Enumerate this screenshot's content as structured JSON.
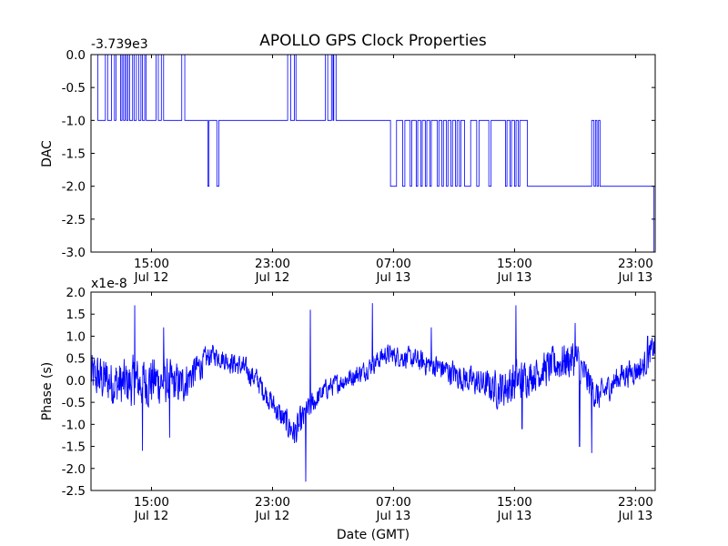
{
  "figure": {
    "title": "APOLLO GPS Clock Properties"
  },
  "chart_data": [
    {
      "type": "line",
      "title": "APOLLO GPS Clock Properties",
      "ylabel": "DAC",
      "offset_text": "-3.739e3",
      "x_unit": "hours since Jul 12 11:00 GMT",
      "xlim": [
        0,
        37.3
      ],
      "ylim": [
        -3.0,
        0.0
      ],
      "yticks": [
        {
          "v": 0.0,
          "label": "0.0"
        },
        {
          "v": -0.5,
          "label": "-0.5"
        },
        {
          "v": -1.0,
          "label": "-1.0"
        },
        {
          "v": -1.5,
          "label": "-1.5"
        },
        {
          "v": -2.0,
          "label": "-2.0"
        },
        {
          "v": -2.5,
          "label": "-2.5"
        },
        {
          "v": -3.0,
          "label": "-3.0"
        }
      ],
      "xticks": [
        {
          "v": 4,
          "time": "15:00",
          "date": "Jul 12"
        },
        {
          "v": 12,
          "time": "23:00",
          "date": "Jul 12"
        },
        {
          "v": 20,
          "time": "07:00",
          "date": "Jul 13"
        },
        {
          "v": 28,
          "time": "15:00",
          "date": "Jul 13"
        },
        {
          "v": 36,
          "time": "23:00",
          "date": "Jul 13"
        }
      ],
      "color": "#0000ff",
      "series": [
        {
          "levels": [
            [
              0.0,
              0
            ],
            [
              0.45,
              -1
            ],
            [
              0.95,
              0
            ],
            [
              1.1,
              -1
            ],
            [
              1.35,
              0
            ],
            [
              1.55,
              -1
            ],
            [
              1.65,
              0
            ],
            [
              1.95,
              -1
            ],
            [
              2.05,
              0
            ],
            [
              2.15,
              -1
            ],
            [
              2.25,
              0
            ],
            [
              2.35,
              -1
            ],
            [
              2.45,
              0
            ],
            [
              2.55,
              -1
            ],
            [
              2.75,
              0
            ],
            [
              2.85,
              -1
            ],
            [
              3.0,
              0
            ],
            [
              3.15,
              -1
            ],
            [
              3.3,
              0
            ],
            [
              3.4,
              -1
            ],
            [
              3.55,
              0
            ],
            [
              3.65,
              -1
            ],
            [
              4.3,
              0
            ],
            [
              4.45,
              -1
            ],
            [
              4.65,
              0
            ],
            [
              4.8,
              -1
            ],
            [
              6.0,
              0
            ],
            [
              6.2,
              -1
            ],
            [
              7.7,
              -1
            ],
            [
              7.72,
              -2
            ],
            [
              7.8,
              -1
            ],
            [
              8.3,
              -1
            ],
            [
              8.32,
              -2
            ],
            [
              8.45,
              -1
            ],
            [
              13.0,
              0
            ],
            [
              13.2,
              -1
            ],
            [
              13.45,
              0
            ],
            [
              13.55,
              -1
            ],
            [
              15.5,
              0
            ],
            [
              15.65,
              -1
            ],
            [
              15.9,
              0
            ],
            [
              16.0,
              -1
            ],
            [
              16.05,
              0
            ],
            [
              16.2,
              -1
            ],
            [
              19.8,
              -2
            ],
            [
              20.2,
              -1
            ],
            [
              20.6,
              -2
            ],
            [
              20.75,
              -1
            ],
            [
              21.1,
              -2
            ],
            [
              21.2,
              -1
            ],
            [
              21.5,
              -2
            ],
            [
              21.6,
              -1
            ],
            [
              21.8,
              -2
            ],
            [
              21.9,
              -1
            ],
            [
              22.1,
              -2
            ],
            [
              22.2,
              -1
            ],
            [
              22.4,
              -2
            ],
            [
              22.5,
              -1
            ],
            [
              22.9,
              -2
            ],
            [
              23.0,
              -1
            ],
            [
              23.2,
              -2
            ],
            [
              23.3,
              -1
            ],
            [
              23.5,
              -2
            ],
            [
              23.6,
              -1
            ],
            [
              23.8,
              -2
            ],
            [
              23.9,
              -1
            ],
            [
              24.1,
              -2
            ],
            [
              24.2,
              -1
            ],
            [
              24.35,
              -2
            ],
            [
              24.45,
              -1
            ],
            [
              24.7,
              -2
            ],
            [
              25.1,
              -1
            ],
            [
              25.5,
              -2
            ],
            [
              25.65,
              -1
            ],
            [
              26.3,
              -2
            ],
            [
              26.45,
              -1
            ],
            [
              27.4,
              -2
            ],
            [
              27.5,
              -1
            ],
            [
              27.7,
              -2
            ],
            [
              27.8,
              -1
            ],
            [
              28.0,
              -2
            ],
            [
              28.1,
              -1
            ],
            [
              28.25,
              -2
            ],
            [
              28.35,
              -1
            ],
            [
              28.85,
              -2
            ],
            [
              33.1,
              -1
            ],
            [
              33.25,
              -2
            ],
            [
              33.35,
              -1
            ],
            [
              33.45,
              -2
            ],
            [
              33.55,
              -1
            ],
            [
              33.65,
              -2
            ],
            [
              37.15,
              -2
            ],
            [
              37.2,
              -3
            ],
            [
              37.3,
              -3
            ]
          ]
        }
      ]
    },
    {
      "type": "line",
      "ylabel": "Phase (s)",
      "xlabel": "Date (GMT)",
      "offset_text": "x1e-8",
      "x_unit": "hours since Jul 12 11:00 GMT",
      "xlim": [
        0,
        37.3
      ],
      "ylim": [
        -2.5,
        2.0
      ],
      "yticks": [
        {
          "v": 2.0,
          "label": "2.0"
        },
        {
          "v": 1.5,
          "label": "1.5"
        },
        {
          "v": 1.0,
          "label": "1.0"
        },
        {
          "v": 0.5,
          "label": "0.5"
        },
        {
          "v": 0.0,
          "label": "0.0"
        },
        {
          "v": -0.5,
          "label": "-0.5"
        },
        {
          "v": -1.0,
          "label": "-1.0"
        },
        {
          "v": -1.5,
          "label": "-1.5"
        },
        {
          "v": -2.0,
          "label": "-2.0"
        },
        {
          "v": -2.5,
          "label": "-2.5"
        }
      ],
      "xticks": [
        {
          "v": 4,
          "time": "15:00",
          "date": "Jul 12"
        },
        {
          "v": 12,
          "time": "23:00",
          "date": "Jul 12"
        },
        {
          "v": 20,
          "time": "07:00",
          "date": "Jul 13"
        },
        {
          "v": 28,
          "time": "15:00",
          "date": "Jul 13"
        },
        {
          "v": 36,
          "time": "23:00",
          "date": "Jul 13"
        }
      ],
      "color": "#0000ff",
      "series": [
        {
          "baseline": [
            [
              0,
              0.1
            ],
            [
              2,
              -0.1
            ],
            [
              4,
              0.0
            ],
            [
              6,
              -0.1
            ],
            [
              8,
              0.6
            ],
            [
              10,
              0.3
            ],
            [
              11,
              0.0
            ],
            [
              12.5,
              -0.8
            ],
            [
              13.5,
              -1.2
            ],
            [
              14.5,
              -0.6
            ],
            [
              15.5,
              -0.2
            ],
            [
              18,
              0.2
            ],
            [
              19.5,
              0.6
            ],
            [
              21,
              0.5
            ],
            [
              23,
              0.3
            ],
            [
              25,
              0.0
            ],
            [
              27,
              -0.2
            ],
            [
              29,
              0.1
            ],
            [
              31,
              0.4
            ],
            [
              32,
              0.5
            ],
            [
              33.5,
              -0.4
            ],
            [
              35,
              0.1
            ],
            [
              36.5,
              0.3
            ],
            [
              37.3,
              0.8
            ]
          ],
          "noise_amp": [
            [
              0,
              0.7
            ],
            [
              4,
              0.8
            ],
            [
              7,
              0.5
            ],
            [
              8,
              0.3
            ],
            [
              10,
              0.35
            ],
            [
              12,
              0.35
            ],
            [
              13.8,
              0.5
            ],
            [
              15,
              0.3
            ],
            [
              20,
              0.3
            ],
            [
              24,
              0.4
            ],
            [
              26,
              0.45
            ],
            [
              28,
              0.7
            ],
            [
              29,
              0.5
            ],
            [
              32,
              0.6
            ],
            [
              34,
              0.4
            ],
            [
              37.3,
              0.4
            ]
          ],
          "spikes": [
            [
              2.9,
              1.7
            ],
            [
              3.4,
              -1.6
            ],
            [
              4.8,
              1.2
            ],
            [
              5.2,
              -1.3
            ],
            [
              14.2,
              -2.3
            ],
            [
              14.5,
              1.6
            ],
            [
              18.6,
              1.75
            ],
            [
              22.5,
              1.2
            ],
            [
              28.1,
              1.7
            ],
            [
              28.5,
              -1.1
            ],
            [
              32.0,
              1.3
            ],
            [
              32.3,
              -1.5
            ],
            [
              33.1,
              -1.65
            ],
            [
              36.8,
              1.0
            ]
          ]
        }
      ]
    }
  ]
}
